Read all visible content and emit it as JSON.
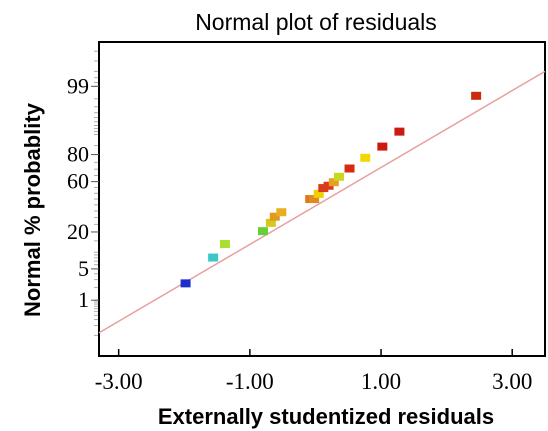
{
  "chart_data": {
    "type": "scatter",
    "title": "Normal plot of residuals",
    "xlabel": "Externally studentized residuals",
    "ylabel": "Normal % probablity",
    "xlim": [
      -3.3,
      3.5
    ],
    "x_ticks": [
      {
        "value": -3.0,
        "label": "-3.00"
      },
      {
        "value": -1.0,
        "label": "-1.00"
      },
      {
        "value": 1.0,
        "label": "1.00"
      },
      {
        "value": 3.0,
        "label": "3.00"
      }
    ],
    "y_scale": "normal-probability",
    "y_ticks": [
      {
        "value": 1,
        "label": "1"
      },
      {
        "value": 5,
        "label": "5"
      },
      {
        "value": 20,
        "label": "20"
      },
      {
        "value": 60,
        "label": "60"
      },
      {
        "value": 80,
        "label": "80"
      },
      {
        "value": 99,
        "label": "99"
      }
    ],
    "grid": false,
    "reference_line": {
      "color": "#e8a0a0",
      "points": [
        [
          -3.3,
          0.12
        ],
        [
          3.5,
          99.6
        ]
      ]
    },
    "points": [
      {
        "x": -1.98,
        "y": 2.5,
        "color": "#1e2fd0"
      },
      {
        "x": -1.56,
        "y": 8.1,
        "color": "#3cc8c8"
      },
      {
        "x": -1.38,
        "y": 13.5,
        "color": "#a8e030"
      },
      {
        "x": -0.8,
        "y": 20.5,
        "color": "#66d036"
      },
      {
        "x": -0.68,
        "y": 26.0,
        "color": "#d8c81e"
      },
      {
        "x": -0.62,
        "y": 30.5,
        "color": "#e09a1e"
      },
      {
        "x": -0.52,
        "y": 34.0,
        "color": "#e8b020"
      },
      {
        "x": -0.08,
        "y": 45.0,
        "color": "#e07822"
      },
      {
        "x": -0.02,
        "y": 45.0,
        "color": "#e08a22"
      },
      {
        "x": 0.05,
        "y": 49.5,
        "color": "#f0d000"
      },
      {
        "x": 0.12,
        "y": 54.5,
        "color": "#d83a1a"
      },
      {
        "x": 0.2,
        "y": 56.5,
        "color": "#d83a1a"
      },
      {
        "x": 0.28,
        "y": 59.5,
        "color": "#e8a020"
      },
      {
        "x": 0.36,
        "y": 64.0,
        "color": "#c8d820"
      },
      {
        "x": 0.52,
        "y": 70.5,
        "color": "#d82a10"
      },
      {
        "x": 0.76,
        "y": 78.0,
        "color": "#f0d800"
      },
      {
        "x": 1.02,
        "y": 84.5,
        "color": "#cc1a10"
      },
      {
        "x": 1.28,
        "y": 91.0,
        "color": "#cc1a10"
      },
      {
        "x": 2.45,
        "y": 98.3,
        "color": "#cc2a10"
      }
    ]
  }
}
